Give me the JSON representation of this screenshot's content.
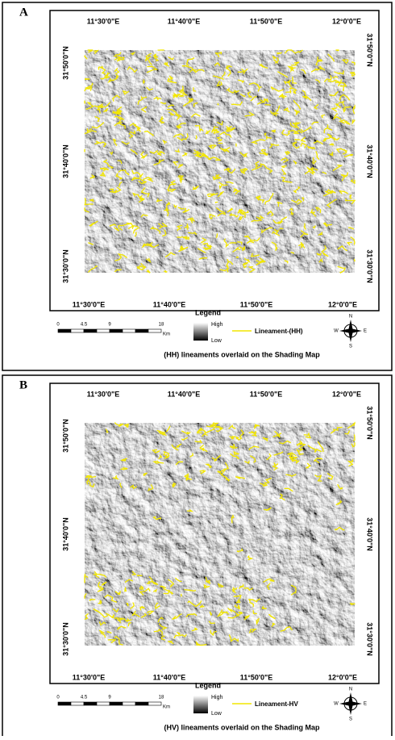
{
  "panels": [
    {
      "label": "A",
      "x_labels_top": [
        "11°30'0\"E",
        "11°40'0\"E",
        "11°50'0\"E",
        "12°0'0\"E"
      ],
      "x_labels_bottom": [
        "11°30'0\"E",
        "11°40'0\"E",
        "11°50'0\"E",
        "12°0'0\"E"
      ],
      "y_labels_left": [
        "31°50'0\"N",
        "31°40'0\"N",
        "31°30'0\"N"
      ],
      "y_labels_right": [
        "31°50'0\"N",
        "31°40'0\"N",
        "31°30'0\"N"
      ],
      "legend": {
        "title": "Legend",
        "high": "High",
        "low": "Low",
        "lineament": "Lineament-(HH)"
      },
      "scale": {
        "ticks": [
          "0",
          "4.5",
          "9",
          "18"
        ],
        "unit": "Km"
      },
      "compass": {
        "n": "N",
        "e": "E",
        "s": "S",
        "w": "W"
      },
      "caption": "(HH) lineaments overlaid on the Shading Map"
    },
    {
      "label": "B",
      "x_labels_top": [
        "11°30'0\"E",
        "11°40'0\"E",
        "11°50'0\"E",
        "12°0'0\"E"
      ],
      "x_labels_bottom": [
        "11°30'0\"E",
        "11°40'0\"E",
        "11°50'0\"E",
        "12°0'0\"E"
      ],
      "y_labels_left": [
        "31°50'0\"N",
        "31°40'0\"N",
        "31°30'0\"N"
      ],
      "y_labels_right": [
        "31°50'0\"N",
        "31°40'0\"N",
        "31°30'0\"N"
      ],
      "legend": {
        "title": "Legend",
        "high": "High",
        "low": "Low",
        "lineament": "Lineament-HV"
      },
      "scale": {
        "ticks": [
          "0",
          "4.5",
          "9",
          "18"
        ],
        "unit": "Km"
      },
      "compass": {
        "n": "N",
        "e": "E",
        "s": "S",
        "w": "W"
      },
      "caption": "(HV) lineaments overlaid on the Shading Map"
    }
  ]
}
